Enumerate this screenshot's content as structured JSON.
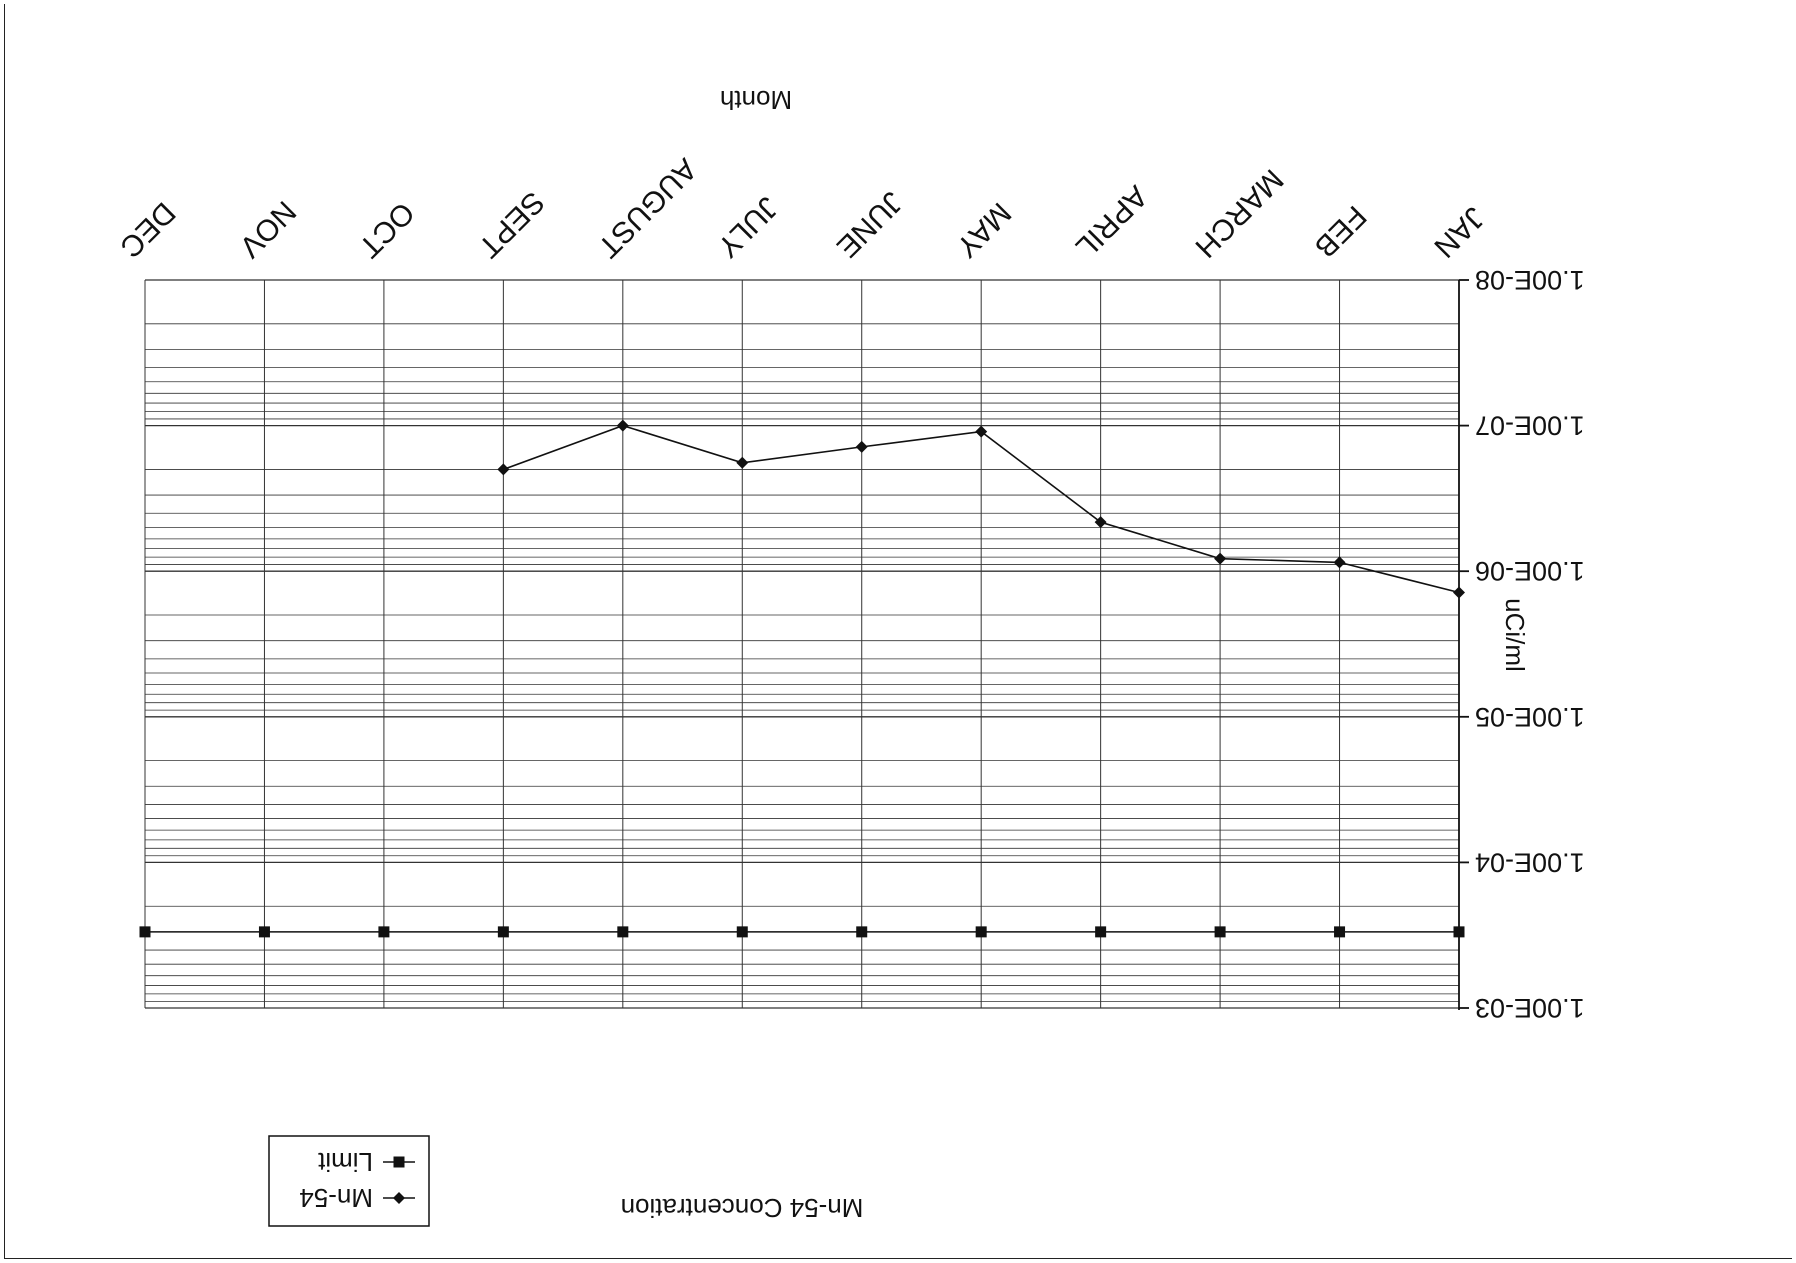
{
  "chart_data": {
    "type": "line",
    "title": "Mn-54 Concentration",
    "xlabel": "Month",
    "ylabel": "uCi/ml",
    "yscale": "log",
    "ylim": [
      1e-08,
      0.001
    ],
    "y_ticks": [
      "1.00E-08",
      "1.00E-07",
      "1.00E-06",
      "1.00E-05",
      "1.00E-04",
      "1.00E-03"
    ],
    "categories": [
      "JAN",
      "FEB",
      "MARCH",
      "APRIL",
      "MAY",
      "JUNE",
      "JULY",
      "AUGUST",
      "SEPT",
      "OCT",
      "NOV",
      "DEC"
    ],
    "grid": true,
    "legend": "bottom-left",
    "rotation_deg": 180,
    "series": [
      {
        "name": "Mn-54",
        "marker": "diamond",
        "color": "#111111",
        "values": [
          1.4e-06,
          8.7e-07,
          8.2e-07,
          4.6e-07,
          1.1e-07,
          1.4e-07,
          1.8e-07,
          1e-07,
          2e-07,
          null,
          null,
          null
        ]
      },
      {
        "name": "Limit",
        "marker": "square",
        "color": "#111111",
        "values": [
          0.0003,
          0.0003,
          0.0003,
          0.0003,
          0.0003,
          0.0003,
          0.0003,
          0.0003,
          0.0003,
          0.0003,
          0.0003,
          0.0003
        ]
      }
    ]
  }
}
